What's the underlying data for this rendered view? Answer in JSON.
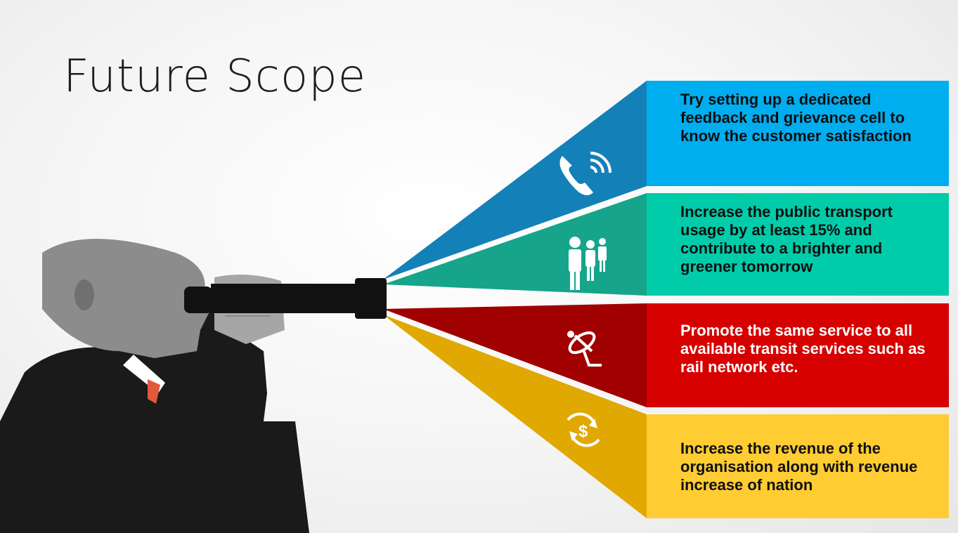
{
  "title": "Future Scope",
  "colors": {
    "panel_blue": "#00aeef",
    "panel_teal": "#00ccaa",
    "panel_red": "#d60000",
    "panel_yellow": "#ffcc33"
  },
  "items": [
    {
      "icon": "phone-signal-icon",
      "text": "Try setting up a dedicated feedback and grievance cell to know the customer satisfaction"
    },
    {
      "icon": "people-group-icon",
      "text": "Increase the public transport usage by at least 15% and contribute to a brighter and greener tomorrow"
    },
    {
      "icon": "satellite-dish-icon",
      "text": "Promote the same service to all available transit services such as rail network etc."
    },
    {
      "icon": "money-cycle-icon",
      "text": "Increase the revenue of the organisation along with revenue increase of nation"
    }
  ]
}
